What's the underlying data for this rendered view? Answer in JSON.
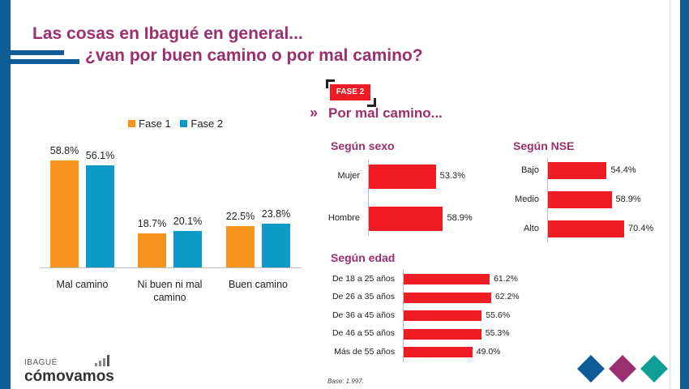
{
  "slide": {
    "title_line1": "Las cosas en Ibagué en general...",
    "title_line2": "¿van por buen camino o por mal camino?",
    "phase_badge": "FASE 2",
    "section_title": "Por mal camino...",
    "base_note": "Base: 1.997.",
    "logo_small": "IBAGUÉ",
    "logo_main": "cómovamos"
  },
  "colors": {
    "fase1": "#f7941d",
    "fase2": "#0e9ac7",
    "red": "#ef1c25",
    "purple": "#9b2f6e",
    "blue_band": "#0f5b96",
    "teal": "#0f9e95"
  },
  "chart_data": [
    {
      "type": "bar",
      "categories": [
        "Mal camino",
        "Ni buen ni mal camino",
        "Buen camino"
      ],
      "series": [
        {
          "name": "Fase 1",
          "values": [
            58.8,
            18.7,
            22.5
          ],
          "labels": [
            "58.8%",
            "18.7%",
            "22.5%"
          ]
        },
        {
          "name": "Fase 2",
          "values": [
            56.1,
            20.1,
            23.8
          ],
          "labels": [
            "56.1%",
            "20.1%",
            "23.8%"
          ]
        }
      ],
      "legend": "top"
    },
    {
      "type": "bar",
      "orientation": "horizontal",
      "title": "Según sexo",
      "categories": [
        "Mujer",
        "Hombre"
      ],
      "values": [
        53.3,
        58.9
      ],
      "labels": [
        "53.3%",
        "58.9%"
      ]
    },
    {
      "type": "bar",
      "orientation": "horizontal",
      "title": "Según NSE",
      "categories": [
        "Bajo",
        "Medio",
        "Alto"
      ],
      "values": [
        54.4,
        58.9,
        70.4
      ],
      "labels": [
        "54.4%",
        "58.9%",
        "70.4%"
      ]
    },
    {
      "type": "bar",
      "orientation": "horizontal",
      "title": "Según edad",
      "categories": [
        "De 18 a 25 años",
        "De 26 a 35 años",
        "De 36 a 45 años",
        "De 46 a 55 años",
        "Más de 55 años"
      ],
      "values": [
        61.2,
        62.2,
        55.6,
        55.3,
        49.0
      ],
      "labels": [
        "61.2%",
        "62.2%",
        "55.6%",
        "55.3%",
        "49.0%"
      ]
    }
  ]
}
